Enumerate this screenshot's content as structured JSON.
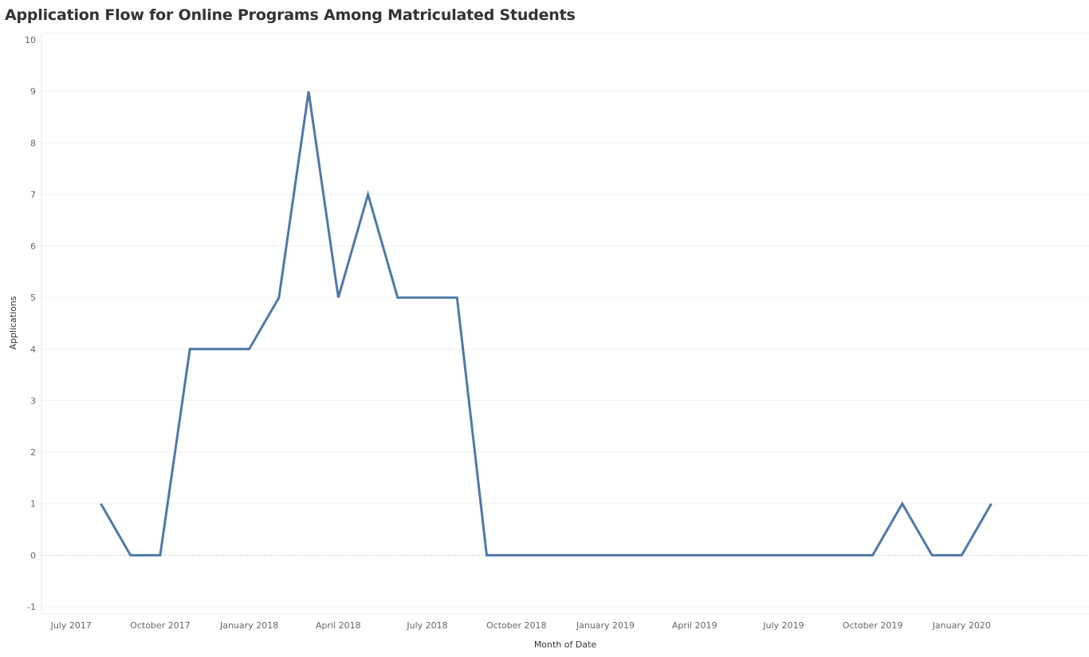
{
  "chart_data": {
    "type": "line",
    "title": "Application Flow for Online Programs Among Matriculated Students",
    "xlabel": "Month of Date",
    "ylabel": "Applications",
    "ylim": [
      -1,
      10
    ],
    "yticks": [
      -1,
      0,
      1,
      2,
      3,
      4,
      5,
      6,
      7,
      8,
      9,
      10
    ],
    "xlim": [
      "2017-06",
      "2020-04"
    ],
    "xticks": [
      {
        "month": "2017-07",
        "label": "July 2017"
      },
      {
        "month": "2017-10",
        "label": "October 2017"
      },
      {
        "month": "2018-01",
        "label": "January 2018"
      },
      {
        "month": "2018-04",
        "label": "April 2018"
      },
      {
        "month": "2018-07",
        "label": "July 2018"
      },
      {
        "month": "2018-10",
        "label": "October 2018"
      },
      {
        "month": "2019-01",
        "label": "January 2019"
      },
      {
        "month": "2019-04",
        "label": "April 2019"
      },
      {
        "month": "2019-07",
        "label": "July 2019"
      },
      {
        "month": "2019-10",
        "label": "October 2019"
      },
      {
        "month": "2020-01",
        "label": "January 2020"
      }
    ],
    "grid": true,
    "line_color": "#4e79a7",
    "series": [
      {
        "points": [
          {
            "x": "2017-08",
            "y": 1
          },
          {
            "x": "2017-09",
            "y": 0
          },
          {
            "x": "2017-10",
            "y": 0
          },
          {
            "x": "2017-11",
            "y": 4
          },
          {
            "x": "2017-12",
            "y": 4
          },
          {
            "x": "2018-01",
            "y": 4
          },
          {
            "x": "2018-02",
            "y": 5
          },
          {
            "x": "2018-03",
            "y": 9
          },
          {
            "x": "2018-04",
            "y": 5
          },
          {
            "x": "2018-05",
            "y": 7
          },
          {
            "x": "2018-06",
            "y": 5
          },
          {
            "x": "2018-07",
            "y": 5
          },
          {
            "x": "2018-08",
            "y": 5
          },
          {
            "x": "2018-09",
            "y": 0
          },
          {
            "x": "2018-10",
            "y": 0
          },
          {
            "x": "2018-11",
            "y": 0
          },
          {
            "x": "2018-12",
            "y": 0
          },
          {
            "x": "2019-01",
            "y": 0
          },
          {
            "x": "2019-02",
            "y": 0
          },
          {
            "x": "2019-03",
            "y": 0
          },
          {
            "x": "2019-04",
            "y": 0
          },
          {
            "x": "2019-05",
            "y": 0
          },
          {
            "x": "2019-06",
            "y": 0
          },
          {
            "x": "2019-07",
            "y": 0
          },
          {
            "x": "2019-08",
            "y": 0
          },
          {
            "x": "2019-09",
            "y": 0
          },
          {
            "x": "2019-10",
            "y": 0
          },
          {
            "x": "2019-11",
            "y": 1
          },
          {
            "x": "2019-12",
            "y": 0
          },
          {
            "x": "2020-01",
            "y": 0
          },
          {
            "x": "2020-02",
            "y": 1
          }
        ]
      }
    ]
  }
}
